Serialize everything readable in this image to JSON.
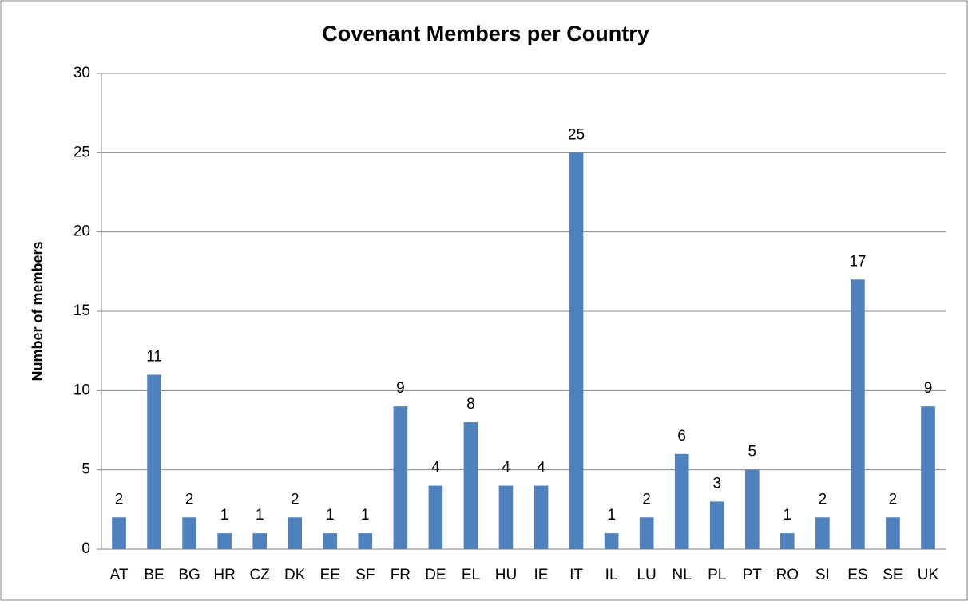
{
  "chart_data": {
    "type": "bar",
    "title": "Covenant Members per Country",
    "y_label": "Number of members",
    "categories": [
      "AT",
      "BE",
      "BG",
      "HR",
      "CZ",
      "DK",
      "EE",
      "SF",
      "FR",
      "DE",
      "EL",
      "HU",
      "IE",
      "IT",
      "IL",
      "LU",
      "NL",
      "PL",
      "PT",
      "RO",
      "SI",
      "ES",
      "SE",
      "UK"
    ],
    "values": [
      2,
      11,
      2,
      1,
      1,
      2,
      1,
      1,
      9,
      4,
      8,
      4,
      4,
      25,
      1,
      2,
      6,
      3,
      5,
      1,
      2,
      17,
      2,
      9
    ],
    "color": "#4f81bd",
    "ylim": [
      0,
      30
    ],
    "yticks": [
      0,
      5,
      10,
      15,
      20,
      25,
      30
    ],
    "grid": true
  }
}
